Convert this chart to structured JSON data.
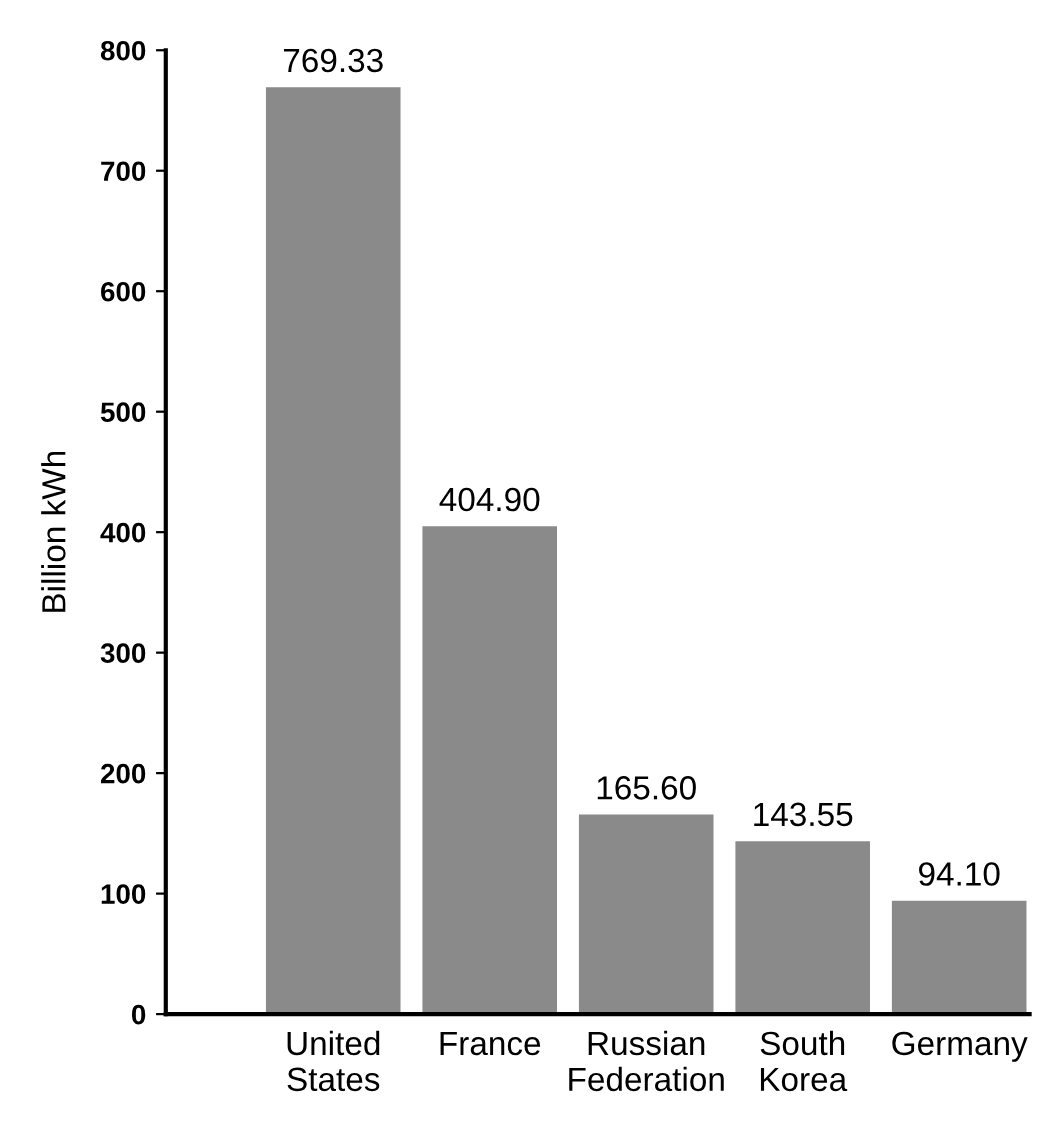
{
  "chart_data": {
    "type": "bar",
    "ylabel": "Billion kWh",
    "categories": [
      "United\nStates",
      "France",
      "Russian\nFederation",
      "South\nKorea",
      "Germany"
    ],
    "values": [
      769.33,
      404.9,
      165.6,
      143.55,
      94.1
    ],
    "value_labels": [
      "769.33",
      "404.90",
      "165.60",
      "143.55",
      "94.10"
    ],
    "color": "#8a8a8a",
    "ylim": [
      0,
      800
    ],
    "yticks": [
      0,
      100,
      200,
      300,
      400,
      500,
      600,
      700,
      800
    ],
    "grid": false,
    "legend": false
  }
}
